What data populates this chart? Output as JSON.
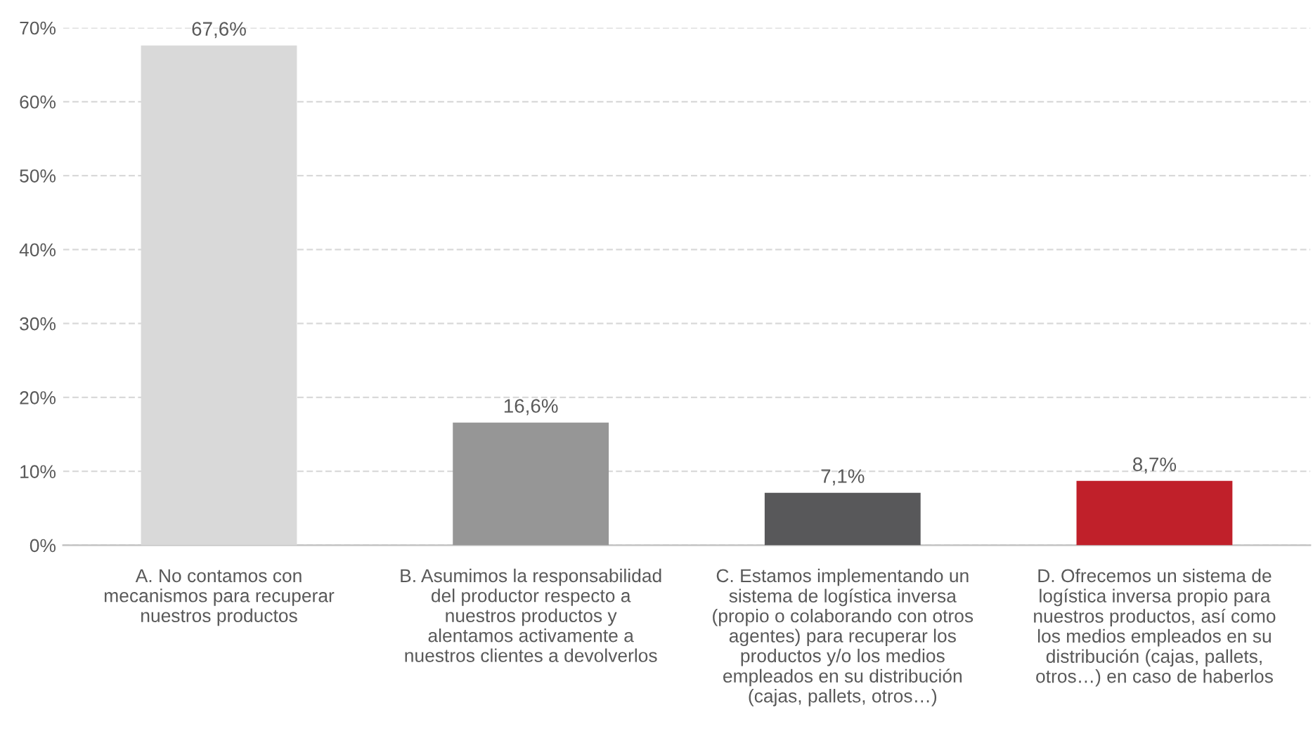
{
  "chart_data": {
    "type": "bar",
    "categories": [
      "A. No contamos con\nmecanismos para recuperar\nnuestros productos",
      "B. Asumimos la responsabilidad\ndel productor respecto a\nnuestros productos y\nalentamos activamente a\nnuestros clientes a devolverlos",
      "C. Estamos implementando un\nsistema de logística inversa\n(propio o colaborando con otros\nagentes) para recuperar los\nproductos y/o los medios\nempleados en su distribución\n(cajas, pallets, otros…)",
      "D. Ofrecemos un sistema de\nlogística inversa propio para\nnuestros productos, así como\nlos medios empleados en su\ndistribución (cajas, pallets,\notros…) en caso de haberlos"
    ],
    "values": [
      67.6,
      16.6,
      7.1,
      8.7
    ],
    "colors": [
      "#d9d9d9",
      "#969696",
      "#58585a",
      "#c0202a"
    ],
    "value_labels": [
      "67,6%",
      "16,6%",
      "7,1%",
      "8,7%"
    ],
    "ylim": [
      0,
      70
    ],
    "yticks": [
      {
        "value": 0,
        "label": "0%"
      },
      {
        "value": 10,
        "label": "10%"
      },
      {
        "value": 20,
        "label": "20%"
      },
      {
        "value": 30,
        "label": "30%"
      },
      {
        "value": 40,
        "label": "40%"
      },
      {
        "value": 50,
        "label": "50%"
      },
      {
        "value": 60,
        "label": "60%"
      },
      {
        "value": 70,
        "label": "70%"
      }
    ],
    "grid": "y",
    "legend": false
  }
}
